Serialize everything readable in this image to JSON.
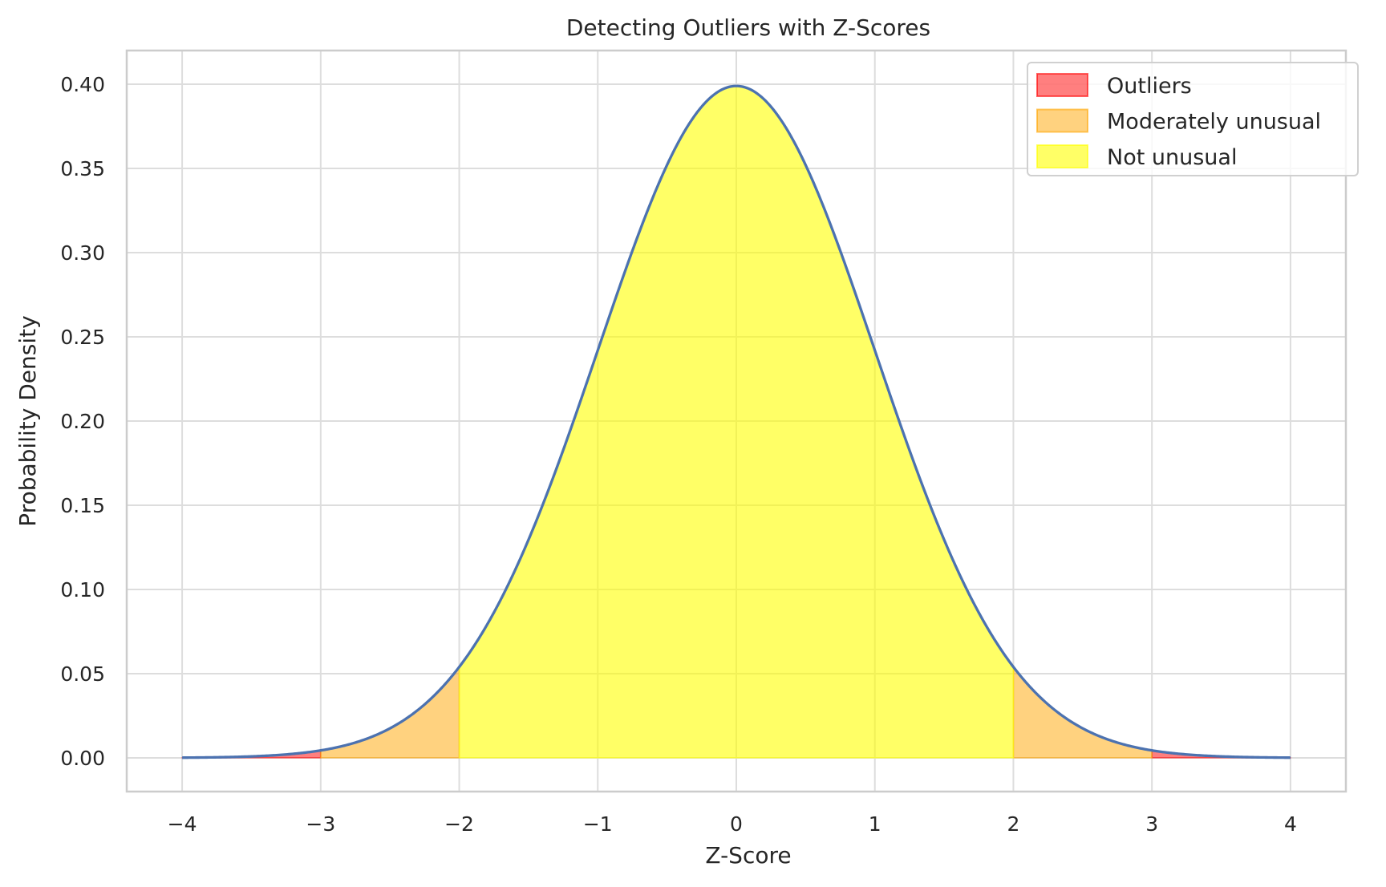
{
  "chart_data": {
    "type": "area",
    "title": "Detecting Outliers with Z-Scores",
    "xlabel": "Z-Score",
    "ylabel": "Probability Density",
    "xlim": [
      -4.4,
      4.4
    ],
    "ylim": [
      -0.02,
      0.42
    ],
    "x_ticks": [
      -4,
      -3,
      -2,
      -1,
      0,
      1,
      2,
      3,
      4
    ],
    "x_tick_labels": [
      "−4",
      "−3",
      "−2",
      "−1",
      "0",
      "1",
      "2",
      "3",
      "4"
    ],
    "y_ticks": [
      0,
      0.05,
      0.1,
      0.15,
      0.2,
      0.25,
      0.3,
      0.35,
      0.4
    ],
    "y_tick_labels": [
      "0.00",
      "0.05",
      "0.10",
      "0.15",
      "0.20",
      "0.25",
      "0.30",
      "0.35",
      "0.40"
    ],
    "grid": true,
    "curve": {
      "distribution": "standard normal pdf",
      "x_range": [
        -4,
        4
      ],
      "color": "#4c72b0"
    },
    "regions": [
      {
        "name": "Outliers",
        "ranges": [
          [
            -4,
            -3
          ],
          [
            3,
            4
          ]
        ],
        "fill": "#ff0000",
        "alpha": 0.5
      },
      {
        "name": "Moderately unusual",
        "ranges": [
          [
            -3,
            -2
          ],
          [
            2,
            3
          ]
        ],
        "fill": "#ffa500",
        "alpha": 0.5
      },
      {
        "name": "Not unusual",
        "ranges": [
          [
            -2,
            2
          ]
        ],
        "fill": "#ffff00",
        "alpha": 0.6
      }
    ],
    "legend": {
      "position": "top-right",
      "entries": [
        "Outliers",
        "Moderately unusual",
        "Not unusual"
      ]
    }
  }
}
